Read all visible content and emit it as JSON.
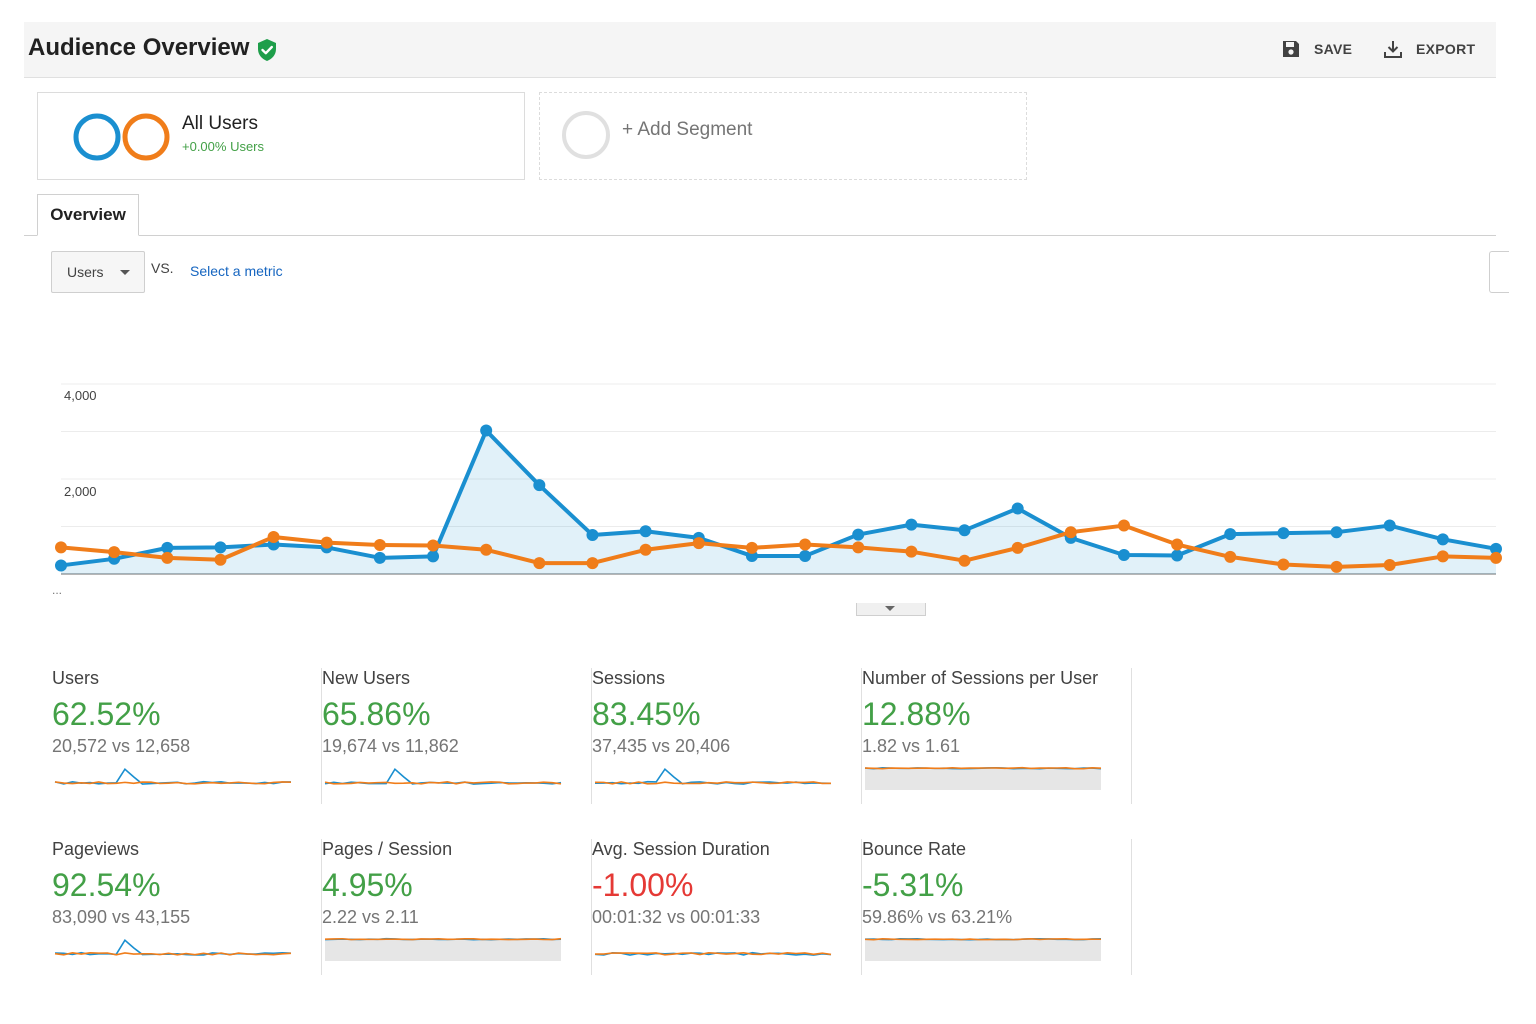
{
  "header": {
    "title": "Audience Overview",
    "save_label": "SAVE",
    "export_label": "EXPORT"
  },
  "segments": {
    "active": {
      "name": "All Users",
      "sub": "+0.00% Users"
    },
    "add_label": "+ Add Segment"
  },
  "tabs": {
    "overview": "Overview"
  },
  "controls": {
    "metric": "Users",
    "vs": "VS.",
    "select_metric": "Select a metric"
  },
  "colors": {
    "primary": "#1a8fd0",
    "comparison": "#f07d1a",
    "positive": "#43a047",
    "negative": "#e53935"
  },
  "chart_data": {
    "type": "line",
    "y_ticks": [
      "4,000",
      "2,000"
    ],
    "ylim": [
      0,
      4000
    ],
    "x_more": "...",
    "series": [
      {
        "values": [
          180,
          320,
          550,
          560,
          620,
          560,
          340,
          370,
          3020,
          1870,
          820,
          900,
          760,
          380,
          380,
          830,
          1040,
          920,
          1380,
          760,
          400,
          390,
          840,
          860,
          880,
          1020,
          730,
          530
        ]
      },
      {
        "values": [
          560,
          460,
          340,
          300,
          780,
          660,
          610,
          600,
          510,
          230,
          230,
          510,
          650,
          550,
          620,
          560,
          470,
          280,
          550,
          880,
          1020,
          620,
          360,
          200,
          150,
          190,
          370,
          340
        ]
      }
    ]
  },
  "tiles": [
    {
      "label": "Users",
      "value": "62.52%",
      "trend": "positive",
      "compare": "20,572 vs 12,658"
    },
    {
      "label": "New Users",
      "value": "65.86%",
      "trend": "positive",
      "compare": "19,674 vs 11,862"
    },
    {
      "label": "Sessions",
      "value": "83.45%",
      "trend": "positive",
      "compare": "37,435 vs 20,406"
    },
    {
      "label": "Number of Sessions per User",
      "value": "12.88%",
      "trend": "positive",
      "compare": "1.82 vs 1.61"
    },
    {
      "label": "Pageviews",
      "value": "92.54%",
      "trend": "positive",
      "compare": "83,090 vs 43,155"
    },
    {
      "label": "Pages / Session",
      "value": "4.95%",
      "trend": "positive",
      "compare": "2.22 vs 2.11"
    },
    {
      "label": "Avg. Session Duration",
      "value": "-1.00%",
      "trend": "negative",
      "compare": "00:01:32 vs 00:01:33"
    },
    {
      "label": "Bounce Rate",
      "value": "-5.31%",
      "trend": "negative-good",
      "compare": "59.86% vs 63.21%"
    }
  ]
}
